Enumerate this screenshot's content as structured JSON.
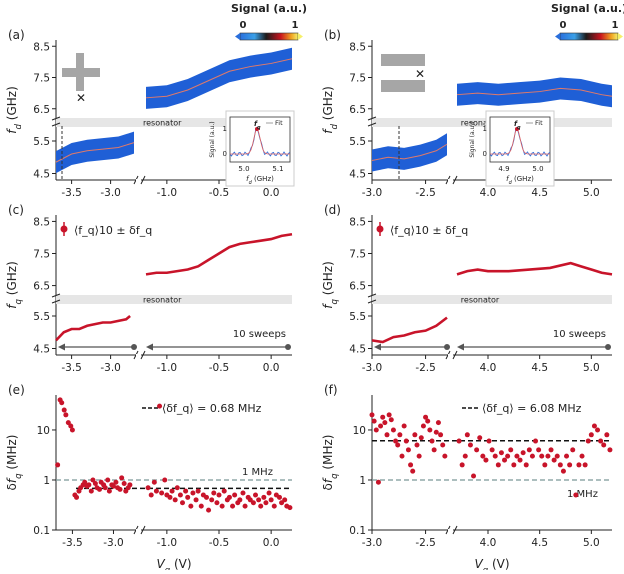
{
  "colorbar": {
    "label": "Signal (a.u.)",
    "min": "0",
    "max": "1"
  },
  "panel_labels": [
    "(a)",
    "(b)",
    "(c)",
    "(d)",
    "(e)",
    "(f)"
  ],
  "resonator_label": "resonator",
  "sweeps_label": "10 sweeps",
  "one_mhz_label": "1 MHz",
  "inset": {
    "ylabel": "Signal (a.u.)",
    "fit_label": "Fit",
    "fq_label": "f_q",
    "xlabel": "f_d (GHz)"
  },
  "chart_data": [
    {
      "type": "heatmap",
      "panel": "(a)",
      "ylabel": "f_d (GHz)",
      "yticks": [
        "8.5",
        "7.5",
        "6.5",
        "5.5",
        "4.5"
      ],
      "xticks_left": [
        "-3.5",
        "-3.0"
      ],
      "xticks_right": [
        "-1.0",
        "-0.5",
        "0.0"
      ],
      "segments": [
        {
          "xrange": [
            -3.7,
            -2.7
          ],
          "x": [
            -3.7,
            -3.5,
            -3.3,
            -3.1,
            -2.9,
            -2.7
          ],
          "y": [
            4.85,
            5.1,
            5.2,
            5.25,
            5.3,
            5.45
          ]
        },
        {
          "xrange": [
            -1.2,
            0.2
          ],
          "x": [
            -1.2,
            -1.0,
            -0.8,
            -0.6,
            -0.4,
            -0.2,
            0.0,
            0.2
          ],
          "y": [
            6.85,
            6.9,
            7.1,
            7.4,
            7.7,
            7.85,
            7.95,
            8.1
          ]
        }
      ],
      "inset": {
        "xticks": [
          "5.0",
          "5.1"
        ],
        "yticks": [
          "1",
          "0"
        ]
      }
    },
    {
      "type": "heatmap",
      "panel": "(b)",
      "ylabel": "f_d (GHz)",
      "yticks": [
        "8.5",
        "7.5",
        "6.5",
        "5.5",
        "4.5"
      ],
      "xticks_left": [
        "-3.0",
        "-2.5"
      ],
      "xticks_right": [
        "4.0",
        "4.5",
        "5.0"
      ],
      "segments": [
        {
          "xrange": [
            -3.0,
            -2.3
          ],
          "x": [
            -3.0,
            -2.85,
            -2.7,
            -2.55,
            -2.4,
            -2.3
          ],
          "y": [
            4.9,
            5.0,
            4.95,
            5.05,
            5.2,
            5.4
          ]
        },
        {
          "xrange": [
            3.7,
            5.2
          ],
          "x": [
            3.7,
            3.9,
            4.1,
            4.3,
            4.5,
            4.7,
            4.9,
            5.1,
            5.2
          ],
          "y": [
            6.95,
            7.0,
            6.95,
            7.0,
            7.05,
            7.15,
            7.1,
            6.95,
            6.9
          ]
        }
      ],
      "inset": {
        "xticks": [
          "4.9",
          "5.0"
        ],
        "yticks": [
          "1",
          "0"
        ]
      }
    },
    {
      "type": "line",
      "panel": "(c)",
      "ylabel": "f_q (GHz)",
      "legend": "⟨f_q⟩10 ± δf_q",
      "yticks": [
        "8.5",
        "7.5",
        "6.5",
        "5.5",
        "4.5"
      ],
      "xticks_left": [
        "-3.5",
        "-3.0"
      ],
      "xticks_right": [
        "-1.0",
        "-0.5",
        "0.0"
      ],
      "segments": [
        {
          "xrange": [
            -3.7,
            -2.7
          ],
          "x": [
            -3.7,
            -3.6,
            -3.5,
            -3.4,
            -3.3,
            -3.2,
            -3.1,
            -3.0,
            -2.9,
            -2.8,
            -2.75
          ],
          "y": [
            4.75,
            5.0,
            5.1,
            5.1,
            5.2,
            5.25,
            5.3,
            5.3,
            5.35,
            5.4,
            5.5
          ]
        },
        {
          "xrange": [
            -1.2,
            0.2
          ],
          "x": [
            -1.2,
            -1.1,
            -1.0,
            -0.9,
            -0.8,
            -0.7,
            -0.6,
            -0.5,
            -0.4,
            -0.3,
            -0.2,
            -0.1,
            0.0,
            0.1,
            0.2
          ],
          "y": [
            6.85,
            6.9,
            6.9,
            6.95,
            7.0,
            7.1,
            7.3,
            7.5,
            7.7,
            7.8,
            7.85,
            7.9,
            7.95,
            8.05,
            8.1
          ]
        }
      ]
    },
    {
      "type": "line",
      "panel": "(d)",
      "ylabel": "f_q (GHz)",
      "legend": "⟨f_q⟩10 ± δf_q",
      "yticks": [
        "8.5",
        "7.5",
        "6.5",
        "5.5",
        "4.5"
      ],
      "xticks_left": [
        "-3.0",
        "-2.5"
      ],
      "xticks_right": [
        "4.0",
        "4.5",
        "5.0"
      ],
      "segments": [
        {
          "xrange": [
            -3.0,
            -2.3
          ],
          "x": [
            -3.0,
            -2.9,
            -2.8,
            -2.7,
            -2.6,
            -2.5,
            -2.4,
            -2.3
          ],
          "y": [
            4.75,
            4.7,
            4.85,
            4.9,
            5.0,
            5.05,
            5.2,
            5.45
          ]
        },
        {
          "xrange": [
            3.7,
            5.2
          ],
          "x": [
            3.7,
            3.8,
            3.9,
            4.0,
            4.2,
            4.4,
            4.6,
            4.8,
            4.9,
            5.0,
            5.1,
            5.2
          ],
          "y": [
            6.85,
            6.95,
            7.0,
            6.95,
            6.95,
            7.0,
            7.05,
            7.2,
            7.1,
            7.0,
            6.9,
            6.85
          ]
        }
      ]
    },
    {
      "type": "scatter",
      "panel": "(e)",
      "ylabel": "δf_q (MHz)",
      "xlabel": "V_g (V)",
      "legend": "⟨δf_q⟩ = 0.68 MHz",
      "mean": 0.68,
      "yscale": "log",
      "yticks": [
        "10",
        "1",
        "0.1"
      ],
      "xticks_left": [
        "-3.5",
        "-3.0"
      ],
      "xticks_right": [
        "-1.0",
        "-0.5",
        "0.0"
      ],
      "segments": [
        {
          "xrange": [
            -3.7,
            -2.75
          ],
          "x": [
            -3.68,
            -3.65,
            -3.63,
            -3.6,
            -3.58,
            -3.55,
            -3.52,
            -3.5,
            -3.47,
            -3.45,
            -3.42,
            -3.4,
            -3.37,
            -3.35,
            -3.32,
            -3.3,
            -3.27,
            -3.25,
            -3.22,
            -3.2,
            -3.17,
            -3.15,
            -3.12,
            -3.1,
            -3.07,
            -3.05,
            -3.02,
            -3.0,
            -2.97,
            -2.95,
            -2.92,
            -2.9,
            -2.87,
            -2.85,
            -2.82,
            -2.8
          ],
          "y": [
            2.0,
            40,
            35,
            25,
            20,
            14,
            12,
            10,
            0.5,
            0.45,
            0.6,
            0.7,
            0.8,
            0.9,
            0.75,
            0.8,
            0.6,
            1.0,
            0.85,
            0.7,
            0.65,
            0.9,
            0.8,
            0.7,
            1.0,
            0.6,
            0.8,
            0.75,
            0.9,
            0.7,
            0.65,
            1.1,
            0.85,
            0.6,
            0.7,
            0.8
          ]
        },
        {
          "xrange": [
            -1.2,
            0.2
          ],
          "x": [
            -1.18,
            -1.15,
            -1.12,
            -1.1,
            -1.07,
            -1.05,
            -1.02,
            -1.0,
            -0.97,
            -0.95,
            -0.92,
            -0.9,
            -0.87,
            -0.85,
            -0.82,
            -0.8,
            -0.77,
            -0.75,
            -0.72,
            -0.7,
            -0.67,
            -0.65,
            -0.62,
            -0.6,
            -0.57,
            -0.55,
            -0.52,
            -0.5,
            -0.47,
            -0.45,
            -0.42,
            -0.4,
            -0.37,
            -0.35,
            -0.32,
            -0.3,
            -0.27,
            -0.25,
            -0.22,
            -0.2,
            -0.17,
            -0.15,
            -0.12,
            -0.1,
            -0.07,
            -0.05,
            -0.02,
            0.0,
            0.03,
            0.05,
            0.08,
            0.1,
            0.13,
            0.15,
            0.18
          ],
          "y": [
            0.7,
            0.5,
            0.9,
            0.6,
            30,
            0.55,
            1.0,
            0.5,
            0.45,
            0.6,
            0.4,
            0.7,
            0.5,
            0.35,
            0.6,
            0.45,
            0.3,
            0.55,
            0.4,
            0.6,
            0.3,
            0.5,
            0.45,
            0.25,
            0.4,
            0.55,
            0.35,
            0.5,
            0.3,
            0.6,
            0.4,
            0.45,
            0.3,
            0.5,
            0.35,
            0.4,
            0.55,
            0.3,
            0.45,
            0.4,
            0.35,
            0.5,
            0.4,
            0.3,
            0.45,
            0.35,
            0.55,
            0.4,
            0.3,
            0.5,
            0.45,
            0.35,
            0.4,
            0.3,
            0.28
          ]
        }
      ]
    },
    {
      "type": "scatter",
      "panel": "(f)",
      "ylabel": "δf_q (MHz)",
      "xlabel": "V_g (V)",
      "legend": "⟨δf_q⟩ = 6.08 MHz",
      "mean": 6.08,
      "yscale": "log",
      "yticks": [
        "10",
        "1",
        "0.1"
      ],
      "xticks_left": [
        "-3.0",
        "-2.5"
      ],
      "xticks_right": [
        "4.0",
        "4.5",
        "5.0"
      ],
      "segments": [
        {
          "xrange": [
            -3.0,
            -2.3
          ],
          "x": [
            -3.0,
            -2.98,
            -2.96,
            -2.94,
            -2.92,
            -2.9,
            -2.88,
            -2.86,
            -2.84,
            -2.82,
            -2.8,
            -2.78,
            -2.76,
            -2.74,
            -2.72,
            -2.7,
            -2.68,
            -2.66,
            -2.64,
            -2.62,
            -2.6,
            -2.58,
            -2.56,
            -2.54,
            -2.52,
            -2.5,
            -2.48,
            -2.46,
            -2.44,
            -2.42,
            -2.4,
            -2.38,
            -2.36,
            -2.34,
            -2.32
          ],
          "y": [
            20,
            15,
            10,
            0.9,
            12,
            18,
            14,
            8,
            20,
            16,
            10,
            6,
            5,
            8,
            3,
            12,
            6,
            4,
            2,
            1.5,
            8,
            5,
            3,
            7,
            12,
            18,
            15,
            10,
            6,
            4,
            9,
            14,
            8,
            5,
            3
          ]
        },
        {
          "xrange": [
            3.7,
            5.2
          ],
          "x": [
            3.72,
            3.75,
            3.78,
            3.8,
            3.83,
            3.86,
            3.89,
            3.92,
            3.95,
            3.98,
            4.01,
            4.04,
            4.07,
            4.1,
            4.13,
            4.16,
            4.19,
            4.22,
            4.25,
            4.28,
            4.31,
            4.34,
            4.37,
            4.4,
            4.43,
            4.46,
            4.49,
            4.52,
            4.55,
            4.58,
            4.61,
            4.64,
            4.67,
            4.7,
            4.73,
            4.76,
            4.79,
            4.82,
            4.85,
            4.88,
            4.91,
            4.94,
            4.97,
            5.0,
            5.03,
            5.06,
            5.09,
            5.12,
            5.15,
            5.18
          ],
          "y": [
            6,
            2,
            3,
            8,
            5,
            1.2,
            4,
            7,
            3,
            2.5,
            6,
            4,
            3,
            2,
            3.5,
            2.5,
            3,
            4,
            2,
            3,
            2.5,
            3.5,
            2,
            4,
            3,
            6,
            4,
            3,
            2,
            3,
            4,
            2.5,
            3,
            2,
            1.5,
            3,
            2,
            4,
            0.5,
            2,
            3,
            2,
            6,
            8,
            12,
            10,
            6,
            5,
            8,
            4
          ]
        }
      ]
    }
  ]
}
